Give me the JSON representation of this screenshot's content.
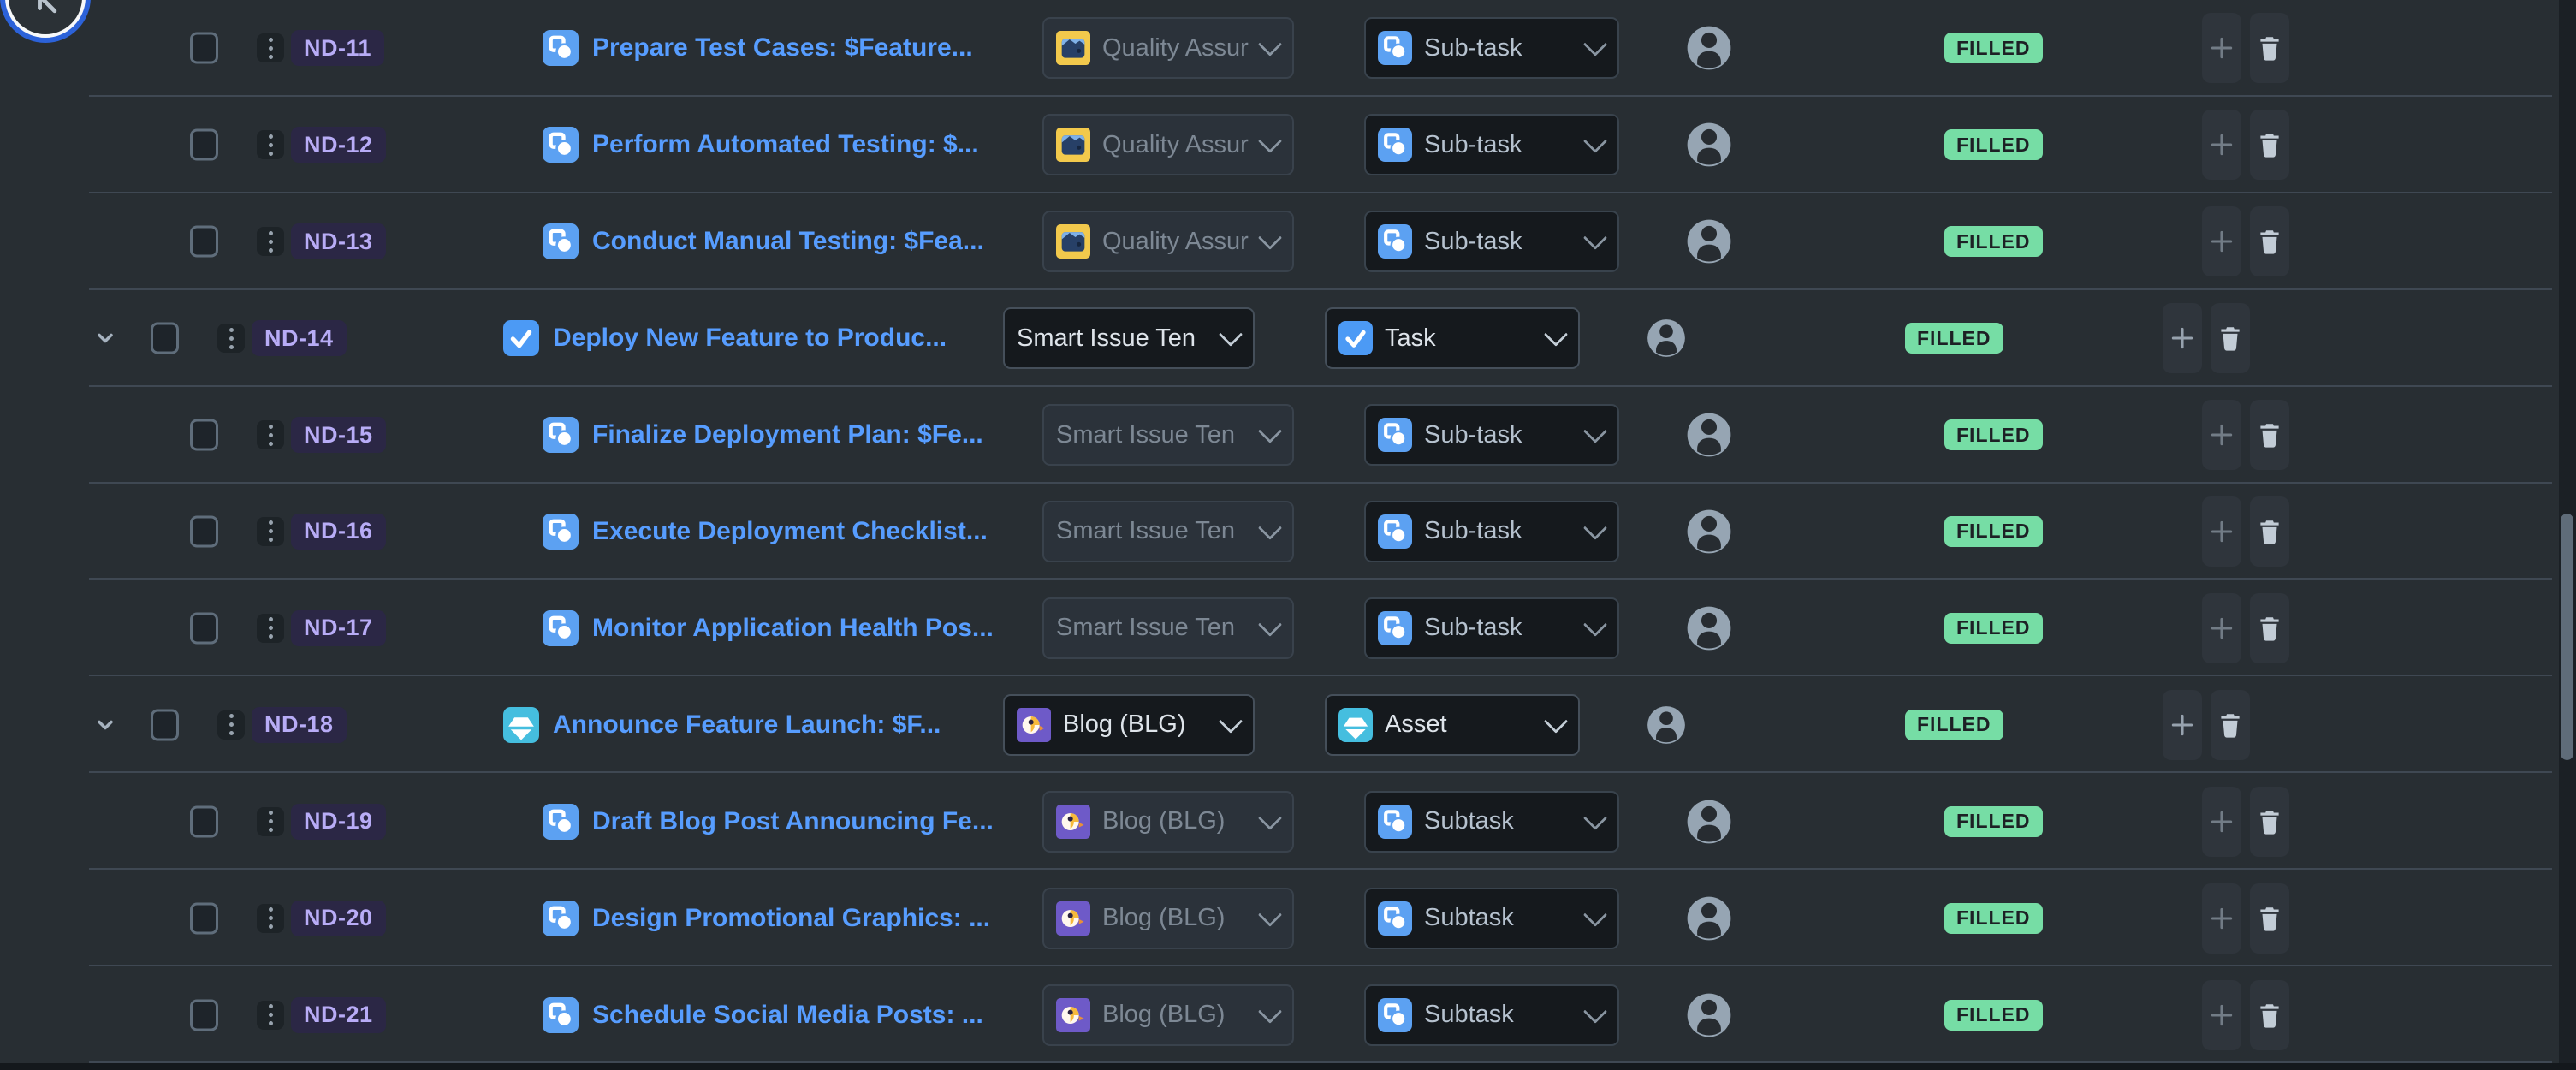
{
  "colors": {
    "page_bg": "#282E33",
    "divider": "#3F4853",
    "link_blue": "#579DFF",
    "key_bg": "#2B2745",
    "key_text": "#B8ACF6",
    "badge_bg": "#76DDA5",
    "badge_text": "#1D2125",
    "enabled_text": "#DEE4EA",
    "disabled_text": "#7D8894"
  },
  "back_button": {
    "icon": "arrow-back-icon"
  },
  "scrollbar": {
    "visible": true
  },
  "rows": [
    {
      "key": "ND-11",
      "indent": "child",
      "expander": false,
      "title": "Prepare Test Cases: $Feature...",
      "title_icon": "subtask-icon",
      "project": {
        "label": "Quality Assur",
        "icon": "qa-project-icon",
        "enabled": false
      },
      "issue_type": {
        "label": "Sub-task",
        "icon": "subtask-icon",
        "enabled": false
      },
      "status": "FILLED"
    },
    {
      "key": "ND-12",
      "indent": "child",
      "expander": false,
      "title": "Perform Automated Testing: $...",
      "title_icon": "subtask-icon",
      "project": {
        "label": "Quality Assur",
        "icon": "qa-project-icon",
        "enabled": false
      },
      "issue_type": {
        "label": "Sub-task",
        "icon": "subtask-icon",
        "enabled": false
      },
      "status": "FILLED"
    },
    {
      "key": "ND-13",
      "indent": "child",
      "expander": false,
      "title": "Conduct Manual Testing: $Fea...",
      "title_icon": "subtask-icon",
      "project": {
        "label": "Quality Assur",
        "icon": "qa-project-icon",
        "enabled": false
      },
      "issue_type": {
        "label": "Sub-task",
        "icon": "subtask-icon",
        "enabled": false
      },
      "status": "FILLED"
    },
    {
      "key": "ND-14",
      "indent": "parent",
      "expander": true,
      "title": "Deploy New Feature to Produc...",
      "title_icon": "task-icon",
      "project": {
        "label": "Smart Issue Ten",
        "icon": "none",
        "enabled": true
      },
      "issue_type": {
        "label": "Task",
        "icon": "task-icon",
        "enabled": true
      },
      "status": "FILLED"
    },
    {
      "key": "ND-15",
      "indent": "child",
      "expander": false,
      "title": "Finalize Deployment Plan: $Fe...",
      "title_icon": "subtask-icon",
      "project": {
        "label": "Smart Issue Ten",
        "icon": "none",
        "enabled": false
      },
      "issue_type": {
        "label": "Sub-task",
        "icon": "subtask-icon",
        "enabled": false
      },
      "status": "FILLED"
    },
    {
      "key": "ND-16",
      "indent": "child",
      "expander": false,
      "title": "Execute Deployment Checklist...",
      "title_icon": "subtask-icon",
      "project": {
        "label": "Smart Issue Ten",
        "icon": "none",
        "enabled": false
      },
      "issue_type": {
        "label": "Sub-task",
        "icon": "subtask-icon",
        "enabled": false
      },
      "status": "FILLED"
    },
    {
      "key": "ND-17",
      "indent": "child",
      "expander": false,
      "title": "Monitor Application Health Pos...",
      "title_icon": "subtask-icon",
      "project": {
        "label": "Smart Issue Ten",
        "icon": "none",
        "enabled": false
      },
      "issue_type": {
        "label": "Sub-task",
        "icon": "subtask-icon",
        "enabled": false
      },
      "status": "FILLED"
    },
    {
      "key": "ND-18",
      "indent": "parent",
      "expander": true,
      "title": "Announce Feature Launch: $F...",
      "title_icon": "asset-icon",
      "project": {
        "label": "Blog (BLG)",
        "icon": "blog-project-icon",
        "enabled": true
      },
      "issue_type": {
        "label": "Asset",
        "icon": "asset-icon",
        "enabled": true
      },
      "status": "FILLED"
    },
    {
      "key": "ND-19",
      "indent": "child",
      "expander": false,
      "title": "Draft Blog Post Announcing Fe...",
      "title_icon": "subtask-icon",
      "project": {
        "label": "Blog (BLG)",
        "icon": "blog-project-icon",
        "enabled": false
      },
      "issue_type": {
        "label": "Subtask",
        "icon": "subtask-icon",
        "enabled": false
      },
      "status": "FILLED"
    },
    {
      "key": "ND-20",
      "indent": "child",
      "expander": false,
      "title": "Design Promotional Graphics: ...",
      "title_icon": "subtask-icon",
      "project": {
        "label": "Blog (BLG)",
        "icon": "blog-project-icon",
        "enabled": false
      },
      "issue_type": {
        "label": "Subtask",
        "icon": "subtask-icon",
        "enabled": false
      },
      "status": "FILLED"
    },
    {
      "key": "ND-21",
      "indent": "child",
      "expander": false,
      "title": "Schedule Social Media Posts: ...",
      "title_icon": "subtask-icon",
      "project": {
        "label": "Blog (BLG)",
        "icon": "blog-project-icon",
        "enabled": false
      },
      "issue_type": {
        "label": "Subtask",
        "icon": "subtask-icon",
        "enabled": false
      },
      "status": "FILLED"
    }
  ]
}
